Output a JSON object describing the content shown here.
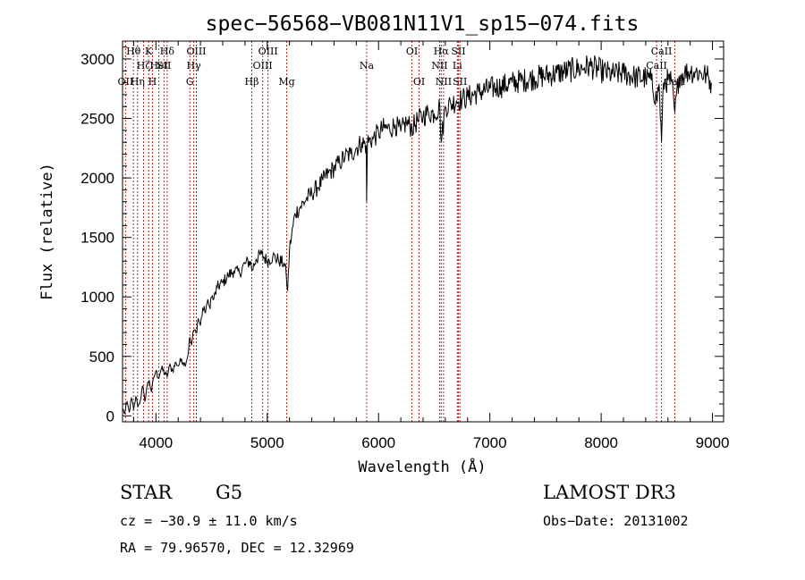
{
  "chart_data": {
    "type": "line",
    "title": "spec−56568−VB081N11V1_sp15−074.fits",
    "xlabel": "Wavelength (Å)",
    "ylabel": "Flux (relative)",
    "xlim": [
      3700,
      9100
    ],
    "ylim": [
      -50,
      3150
    ],
    "x_ticks": [
      4000,
      5000,
      6000,
      7000,
      8000,
      9000
    ],
    "y_ticks": [
      0,
      500,
      1000,
      1500,
      2000,
      2500,
      3000
    ],
    "series": [
      {
        "name": "flux",
        "color": "#000000",
        "x": [
          3700,
          3720,
          3740,
          3760,
          3780,
          3800,
          3820,
          3840,
          3860,
          3880,
          3890,
          3900,
          3920,
          3940,
          3960,
          3980,
          4000,
          4020,
          4050,
          4080,
          4101,
          4120,
          4150,
          4180,
          4200,
          4230,
          4260,
          4290,
          4300,
          4320,
          4340,
          4360,
          4380,
          4400,
          4420,
          4440,
          4460,
          4480,
          4500,
          4520,
          4550,
          4600,
          4650,
          4700,
          4750,
          4800,
          4850,
          4861,
          4900,
          4950,
          5000,
          5050,
          5100,
          5150,
          5170,
          5183,
          5200,
          5250,
          5300,
          5350,
          5400,
          5450,
          5500,
          5550,
          5600,
          5650,
          5700,
          5750,
          5800,
          5850,
          5890,
          5893,
          5900,
          5950,
          6000,
          6050,
          6100,
          6150,
          6200,
          6250,
          6300,
          6350,
          6400,
          6450,
          6500,
          6550,
          6563,
          6600,
          6650,
          6700,
          6750,
          6800,
          6900,
          7000,
          7100,
          7200,
          7300,
          7400,
          7500,
          7600,
          7700,
          7800,
          7850,
          7900,
          8000,
          8100,
          8200,
          8300,
          8400,
          8450,
          8498,
          8520,
          8542,
          8560,
          8600,
          8630,
          8662,
          8700,
          8750,
          8800,
          8850,
          8900,
          8950,
          8990
        ],
        "y": [
          60,
          20,
          120,
          30,
          150,
          50,
          160,
          80,
          130,
          250,
          200,
          120,
          250,
          300,
          200,
          320,
          380,
          320,
          400,
          360,
          330,
          420,
          380,
          450,
          420,
          480,
          430,
          520,
          650,
          600,
          720,
          700,
          820,
          760,
          900,
          870,
          950,
          920,
          1000,
          980,
          1080,
          1120,
          1180,
          1220,
          1200,
          1280,
          1300,
          1220,
          1320,
          1360,
          1300,
          1340,
          1310,
          1280,
          1200,
          1050,
          1400,
          1700,
          1760,
          1820,
          1870,
          1920,
          1980,
          2040,
          2080,
          2130,
          2180,
          2200,
          2250,
          2300,
          2270,
          1800,
          2300,
          2330,
          2380,
          2420,
          2410,
          2450,
          2390,
          2470,
          2420,
          2480,
          2520,
          2550,
          2540,
          2600,
          2300,
          2600,
          2620,
          2650,
          2660,
          2680,
          2720,
          2750,
          2770,
          2800,
          2820,
          2840,
          2860,
          2880,
          2900,
          2920,
          2930,
          2940,
          2900,
          2870,
          2880,
          2850,
          2840,
          2820,
          2650,
          2790,
          2300,
          2800,
          2820,
          2810,
          2550,
          2860,
          2880,
          2900,
          2890,
          2880,
          2860,
          2800
        ]
      }
    ],
    "spectral_lines": [
      {
        "name": "OII",
        "wavelength": 3727,
        "row": 2
      },
      {
        "name": "Hθ",
        "wavelength": 3798,
        "row": 0
      },
      {
        "name": "Hη",
        "wavelength": 3835,
        "row": 2
      },
      {
        "name": "Hζ",
        "wavelength": 3889,
        "row": 1
      },
      {
        "name": "K",
        "wavelength": 3934,
        "row": 0
      },
      {
        "name": "H",
        "wavelength": 3969,
        "row": 2
      },
      {
        "name": "HeI",
        "wavelength": 4026,
        "row": 1
      },
      {
        "name": "Hδ",
        "wavelength": 4101,
        "row": 0
      },
      {
        "name": "SII",
        "wavelength": 4072,
        "row": 1
      },
      {
        "name": "OIII",
        "wavelength": 4363,
        "row": 0
      },
      {
        "name": "Hγ",
        "wavelength": 4340,
        "row": 1
      },
      {
        "name": "G",
        "wavelength": 4305,
        "row": 2
      },
      {
        "name": "Hβ",
        "wavelength": 4861,
        "row": 2
      },
      {
        "name": "OIII",
        "wavelength": 5007,
        "row": 0
      },
      {
        "name": "OIII",
        "wavelength": 4959,
        "row": 1
      },
      {
        "name": "Mg",
        "wavelength": 5175,
        "row": 2
      },
      {
        "name": "Na",
        "wavelength": 5893,
        "row": 1
      },
      {
        "name": "OI",
        "wavelength": 6300,
        "row": 0
      },
      {
        "name": "OI",
        "wavelength": 6364,
        "row": 2
      },
      {
        "name": "Hα",
        "wavelength": 6563,
        "row": 0
      },
      {
        "name": "NII",
        "wavelength": 6548,
        "row": 1
      },
      {
        "name": "NII",
        "wavelength": 6584,
        "row": 2
      },
      {
        "name": "SII",
        "wavelength": 6717,
        "row": 0
      },
      {
        "name": "Li",
        "wavelength": 6708,
        "row": 1
      },
      {
        "name": "SII",
        "wavelength": 6731,
        "row": 2
      },
      {
        "name": "CaII",
        "wavelength": 8542,
        "row": 0
      },
      {
        "name": "CaII",
        "wavelength": 8498,
        "row": 1
      },
      {
        "name": "CaII",
        "wavelength": 8662,
        "row": 2
      }
    ]
  },
  "info": {
    "object_type": "STAR",
    "subclass": "G5",
    "survey": "LAMOST DR3",
    "redshift": "cz = −30.9 ± 11.0 km/s",
    "obs_date": "Obs−Date: 20131002",
    "coordinates": "RA =  79.96570, DEC =  12.32969"
  }
}
